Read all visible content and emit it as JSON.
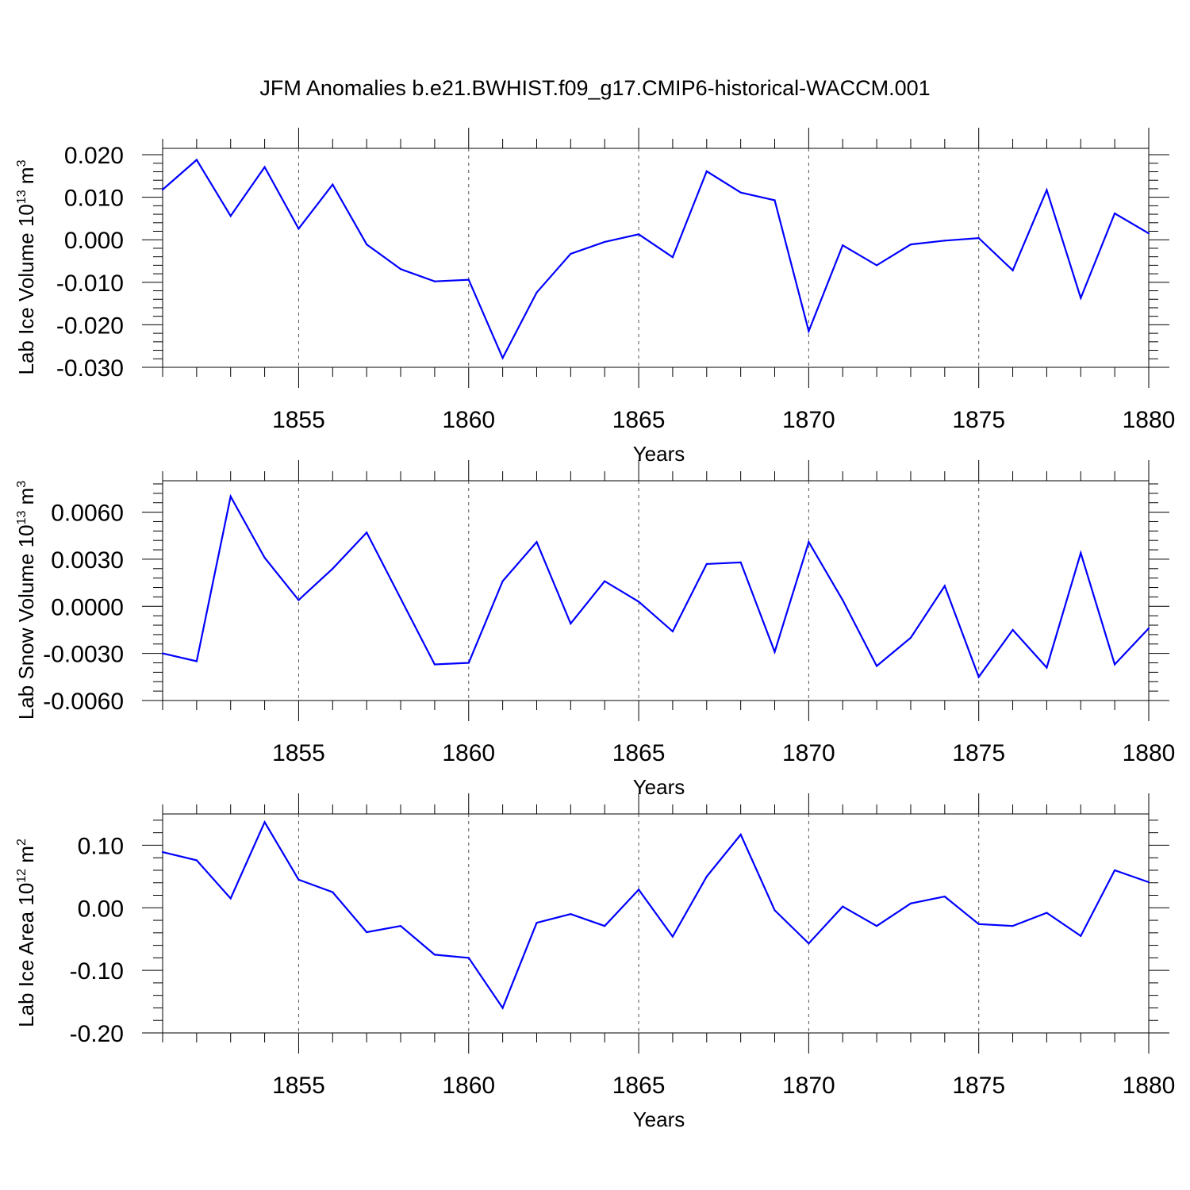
{
  "title": "JFM Anomalies b.e21.BWHIST.f09_g17.CMIP6-historical-WACCM.001",
  "style": {
    "line_color": "#0000ff",
    "grid_color": "#555555",
    "axis_color": "#000000"
  },
  "chart_data": [
    {
      "type": "line",
      "name": "lab-ice-volume",
      "title": "",
      "xlabel": "Years",
      "ylabel": {
        "text": "Lab Ice Volume 10",
        "exp": "13",
        "unit": " m",
        "unit_exp": "3"
      },
      "xlim": [
        1851,
        1880
      ],
      "ylim": [
        -0.03,
        0.0215
      ],
      "xticks": [
        "1855",
        "1860",
        "1865",
        "1870",
        "1875",
        "1880"
      ],
      "yticks": [
        "0.020",
        "0.010",
        "0.000",
        "-0.010",
        "-0.020",
        "-0.030"
      ],
      "ytick_values": [
        0.02,
        0.01,
        0.0,
        -0.01,
        -0.02,
        -0.03
      ],
      "x": [
        1851,
        1852,
        1853,
        1854,
        1855,
        1856,
        1857,
        1858,
        1859,
        1860,
        1861,
        1862,
        1863,
        1864,
        1865,
        1866,
        1867,
        1868,
        1869,
        1870,
        1871,
        1872,
        1873,
        1874,
        1875,
        1876,
        1877,
        1878,
        1879,
        1880
      ],
      "values": [
        0.0118,
        0.0188,
        0.0056,
        0.0171,
        0.0026,
        0.013,
        -0.0011,
        -0.0069,
        -0.0098,
        -0.0094,
        -0.0278,
        -0.0124,
        -0.0033,
        -0.0005,
        0.0013,
        -0.0041,
        0.0161,
        0.0111,
        0.0093,
        -0.0215,
        -0.0013,
        -0.006,
        -0.0011,
        -0.0002,
        0.0004,
        -0.0072,
        0.0117,
        -0.0137,
        0.0062,
        0.0015
      ]
    },
    {
      "type": "line",
      "name": "lab-snow-volume",
      "title": "",
      "xlabel": "Years",
      "ylabel": {
        "text": "Lab Snow Volume 10",
        "exp": "13",
        "unit": " m",
        "unit_exp": "3"
      },
      "xlim": [
        1851,
        1880
      ],
      "ylim": [
        -0.006,
        0.008
      ],
      "xticks": [
        "1855",
        "1860",
        "1865",
        "1870",
        "1875",
        "1880"
      ],
      "yticks": [
        "0.0060",
        "0.0030",
        "0.0000",
        "-0.0030",
        "-0.0060"
      ],
      "ytick_values": [
        0.006,
        0.003,
        0.0,
        -0.003,
        -0.006
      ],
      "x": [
        1851,
        1852,
        1853,
        1854,
        1855,
        1856,
        1857,
        1858,
        1859,
        1860,
        1861,
        1862,
        1863,
        1864,
        1865,
        1866,
        1867,
        1868,
        1869,
        1870,
        1871,
        1872,
        1873,
        1874,
        1875,
        1876,
        1877,
        1878,
        1879,
        1880
      ],
      "values": [
        -0.003,
        -0.0035,
        0.007,
        0.0031,
        0.0004,
        0.0024,
        0.0047,
        0.0005,
        -0.0037,
        -0.0036,
        0.0016,
        0.0041,
        -0.0011,
        0.0016,
        0.0003,
        -0.0016,
        0.0027,
        0.0028,
        -0.0029,
        0.0041,
        0.0004,
        -0.0038,
        -0.002,
        0.0013,
        -0.0045,
        -0.0015,
        -0.0039,
        0.0034,
        -0.0037,
        -0.0014
      ]
    },
    {
      "type": "line",
      "name": "lab-ice-area",
      "title": "",
      "xlabel": "Years",
      "ylabel": {
        "text": "Lab Ice Area 10",
        "exp": "12",
        "unit": " m",
        "unit_exp": "2"
      },
      "xlim": [
        1851,
        1880
      ],
      "ylim": [
        -0.2,
        0.15
      ],
      "xticks": [
        "1855",
        "1860",
        "1865",
        "1870",
        "1875",
        "1880"
      ],
      "yticks": [
        "0.10",
        "0.00",
        "-0.10",
        "-0.20"
      ],
      "ytick_values": [
        0.1,
        0.0,
        -0.1,
        -0.2
      ],
      "x": [
        1851,
        1852,
        1853,
        1854,
        1855,
        1856,
        1857,
        1858,
        1859,
        1860,
        1861,
        1862,
        1863,
        1864,
        1865,
        1866,
        1867,
        1868,
        1869,
        1870,
        1871,
        1872,
        1873,
        1874,
        1875,
        1876,
        1877,
        1878,
        1879,
        1880
      ],
      "values": [
        0.089,
        0.076,
        0.015,
        0.137,
        0.045,
        0.025,
        -0.039,
        -0.029,
        -0.075,
        -0.08,
        -0.16,
        -0.024,
        -0.01,
        -0.029,
        0.029,
        -0.046,
        0.05,
        0.117,
        -0.004,
        -0.057,
        0.002,
        -0.029,
        0.007,
        0.018,
        -0.026,
        -0.029,
        -0.008,
        -0.045,
        0.06,
        0.041
      ]
    }
  ]
}
